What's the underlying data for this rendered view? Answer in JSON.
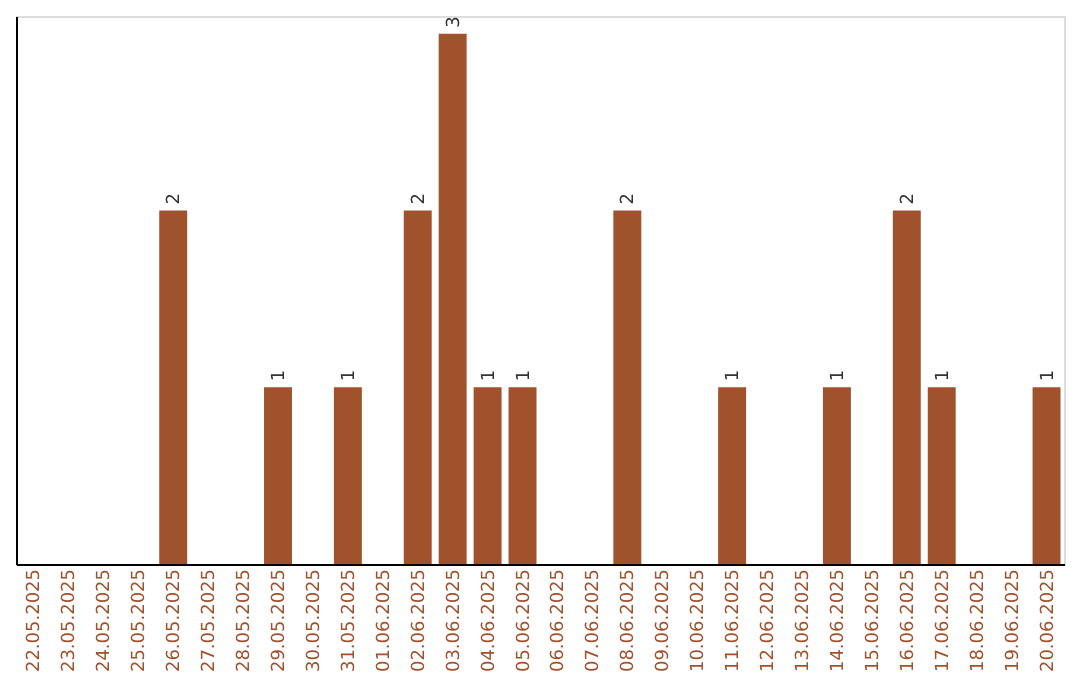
{
  "chart_data": {
    "type": "bar",
    "categories": [
      "22.05.2025",
      "23.05.2025",
      "24.05.2025",
      "25.05.2025",
      "26.05.2025",
      "27.05.2025",
      "28.05.2025",
      "29.05.2025",
      "30.05.2025",
      "31.05.2025",
      "01.06.2025",
      "02.06.2025",
      "03.06.2025",
      "04.06.2025",
      "05.06.2025",
      "06.06.2025",
      "07.06.2025",
      "08.06.2025",
      "09.06.2025",
      "10.06.2025",
      "11.06.2025",
      "12.06.2025",
      "13.06.2025",
      "14.06.2025",
      "15.06.2025",
      "16.06.2025",
      "17.06.2025",
      "18.06.2025",
      "19.06.2025",
      "20.06.2025"
    ],
    "values": [
      0,
      0,
      0,
      0,
      2,
      0,
      0,
      1,
      0,
      1,
      0,
      2,
      3,
      1,
      1,
      0,
      0,
      2,
      0,
      0,
      1,
      0,
      0,
      1,
      0,
      2,
      1,
      0,
      0,
      1
    ],
    "value_labels": [
      null,
      null,
      null,
      null,
      "2",
      null,
      null,
      "1",
      null,
      "1",
      null,
      "2",
      "3",
      "1",
      "1",
      null,
      null,
      "2",
      null,
      null,
      "1",
      null,
      null,
      "1",
      null,
      "2",
      "1",
      null,
      null,
      "1"
    ],
    "color": "#a0522d",
    "ylim": [
      0,
      3.1
    ],
    "tick_labels": "x",
    "grid": false
  }
}
